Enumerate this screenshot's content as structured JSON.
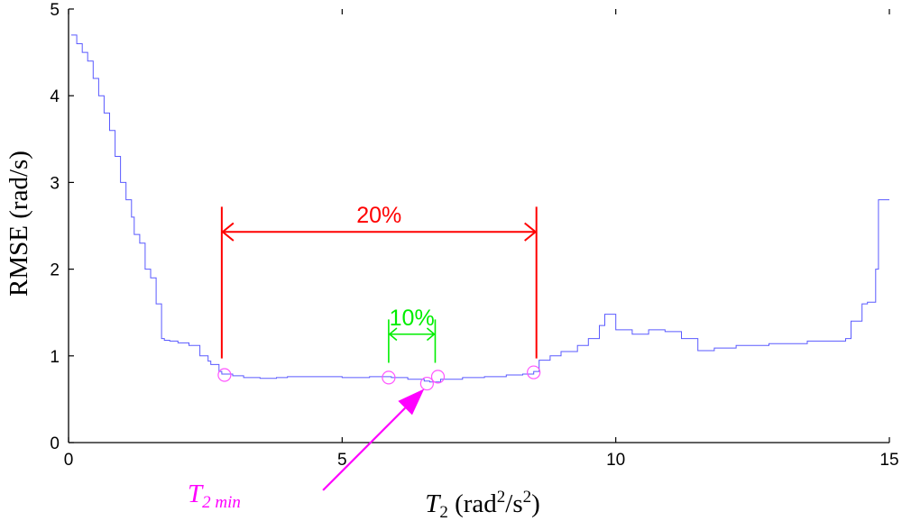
{
  "chart_data": {
    "type": "line",
    "title": "",
    "xlabel": {
      "symbol": "T",
      "sub": "2",
      "unit_open": " (rad",
      "sup1": "2",
      "unit_mid": "/s",
      "sup2": "2",
      "unit_close": ")"
    },
    "ylabel": "RMSE (rad/s)",
    "xlim": [
      0,
      15
    ],
    "ylim": [
      0,
      5
    ],
    "xticks": [
      0,
      5,
      10,
      15
    ],
    "yticks": [
      0,
      1,
      2,
      3,
      4,
      5
    ],
    "grid": false,
    "line_color": "#5a5aff",
    "series": [
      {
        "x": [
          0.05,
          0.15,
          0.25,
          0.35,
          0.45,
          0.55,
          0.65,
          0.75,
          0.85,
          0.95,
          1.05,
          1.15,
          1.2,
          1.3,
          1.4,
          1.5,
          1.6,
          1.7,
          1.75,
          1.85,
          2.0,
          2.2,
          2.4,
          2.55,
          2.6,
          2.75,
          2.8,
          3.0,
          3.2,
          3.5,
          3.8,
          4.0,
          4.5,
          5.0,
          5.5,
          5.9,
          6.2,
          6.5,
          6.6,
          6.8,
          7.2,
          7.6,
          8.0,
          8.3,
          8.5,
          8.6,
          8.8,
          9.0,
          9.3,
          9.5,
          9.7,
          9.8,
          10.0,
          10.3,
          10.6,
          10.9,
          11.2,
          11.5,
          11.8,
          12.2,
          12.8,
          13.5,
          14.2,
          14.3,
          14.5,
          14.6,
          14.75,
          14.8,
          15.0
        ],
        "y": [
          4.7,
          4.6,
          4.5,
          4.4,
          4.2,
          4.0,
          3.8,
          3.6,
          3.3,
          3.0,
          2.8,
          2.6,
          2.4,
          2.3,
          2.0,
          1.9,
          1.6,
          1.2,
          1.18,
          1.17,
          1.15,
          1.12,
          1.0,
          0.94,
          0.9,
          0.82,
          0.79,
          0.77,
          0.75,
          0.74,
          0.75,
          0.76,
          0.76,
          0.75,
          0.76,
          0.75,
          0.73,
          0.71,
          0.7,
          0.73,
          0.75,
          0.76,
          0.78,
          0.79,
          0.82,
          0.95,
          1.0,
          1.05,
          1.12,
          1.2,
          1.35,
          1.48,
          1.3,
          1.25,
          1.3,
          1.28,
          1.2,
          1.06,
          1.09,
          1.12,
          1.14,
          1.17,
          1.2,
          1.4,
          1.6,
          1.62,
          2.0,
          2.8,
          2.8
        ]
      }
    ],
    "markers": [
      {
        "x": 2.85,
        "y": 0.78
      },
      {
        "x": 5.85,
        "y": 0.75
      },
      {
        "x": 6.55,
        "y": 0.68
      },
      {
        "x": 6.75,
        "y": 0.76
      },
      {
        "x": 8.5,
        "y": 0.81
      }
    ],
    "annotations": {
      "range20": {
        "label": "20%",
        "x1": 2.8,
        "x2": 8.55,
        "y_arrow": 2.43,
        "y_top": 2.72,
        "y_bottom": 0.97,
        "color": "#ff0000"
      },
      "range10": {
        "label": "10%",
        "x1": 5.85,
        "x2": 6.7,
        "y_arrow": 1.25,
        "y_top": 1.42,
        "y_bottom": 0.92,
        "color": "#00ee00"
      },
      "tmin": {
        "label_main": "T",
        "label_sub": "2 min",
        "color": "#ff00ff",
        "x_text": 4.65,
        "y_text": -0.55,
        "x_tip": 6.5,
        "y_tip": 0.62
      }
    }
  }
}
